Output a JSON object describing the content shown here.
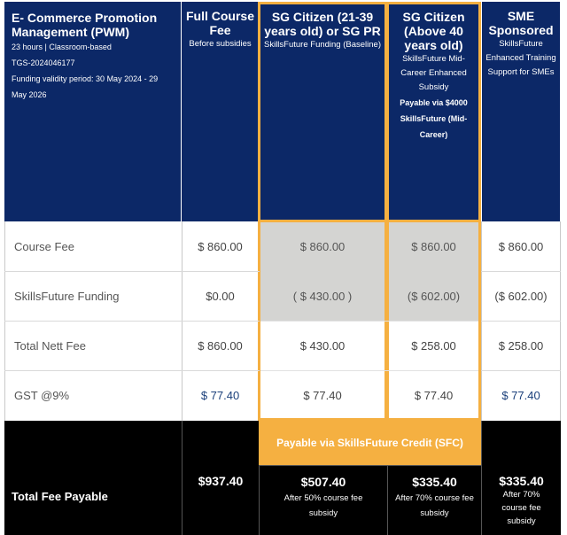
{
  "header": {
    "course": {
      "title": "E- Commerce Promotion Management (PWM)",
      "meta": "23 hours | Classroom-based",
      "code": "TGS-2024046177",
      "validity": "Funding validity period: 30 May 2024 - 29 May 2026"
    },
    "full_fee": {
      "title": "Full Course Fee",
      "sub": "Before subsidies"
    },
    "sg_baseline": {
      "title": "SG Citizen (21-39 years old) or SG PR",
      "sub": "SkillsFuture Funding (Baseline)"
    },
    "sg_mid": {
      "title": "SG Citizen (Above 40 years old)",
      "sub": "SkillsFuture Mid-Career Enhanced Subsidy",
      "note": "Payable via $4000 SkillsFuture (Mid-Career)"
    },
    "sme": {
      "title": "SME Sponsored",
      "sub": "SkillsFuture Enhanced Training Support for SMEs"
    }
  },
  "rows": [
    {
      "label": "Course Fee",
      "full": "$ 860.00",
      "baseline": "$ 860.00",
      "mid": "$ 860.00",
      "sme": "$ 860.00"
    },
    {
      "label": "SkillsFuture Funding",
      "full": "$0.00",
      "baseline": "( $ 430.00 )",
      "mid": "($ 602.00)",
      "sme": "($ 602.00)"
    },
    {
      "label": "Total Nett Fee",
      "full": "$ 860.00",
      "baseline": "$ 430.00",
      "mid": "$ 258.00",
      "sme": "$ 258.00"
    },
    {
      "label": "GST @9%",
      "full": "$ 77.40",
      "baseline": "$ 77.40",
      "mid": "$ 77.40",
      "sme": "$ 77.40"
    }
  ],
  "payable_banner": "Payable via SkillsFuture Credit (SFC)",
  "total": {
    "label": "Total Fee Payable",
    "full": {
      "amount": "$937.40"
    },
    "baseline": {
      "amount": "$507.40",
      "note": "After 50% course fee subsidy"
    },
    "mid": {
      "amount": "$335.40",
      "note": "After 70% course fee subsidy"
    },
    "sme": {
      "amount": "$335.40",
      "note": "After 70% course fee subsidy"
    }
  },
  "colors": {
    "navy": "#0c2867",
    "orange": "#f5b041",
    "grey": "#d4d4d2",
    "black": "#000000"
  }
}
